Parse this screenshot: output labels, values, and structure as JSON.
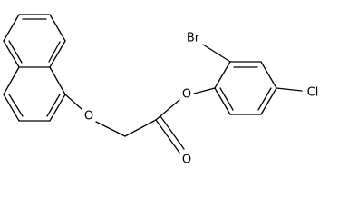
{
  "atoms": [
    {
      "label": "Br"
    },
    {
      "label": "O"
    },
    {
      "label": "O"
    },
    {
      "label": "O"
    },
    {
      "label": "Cl"
    }
  ]
}
